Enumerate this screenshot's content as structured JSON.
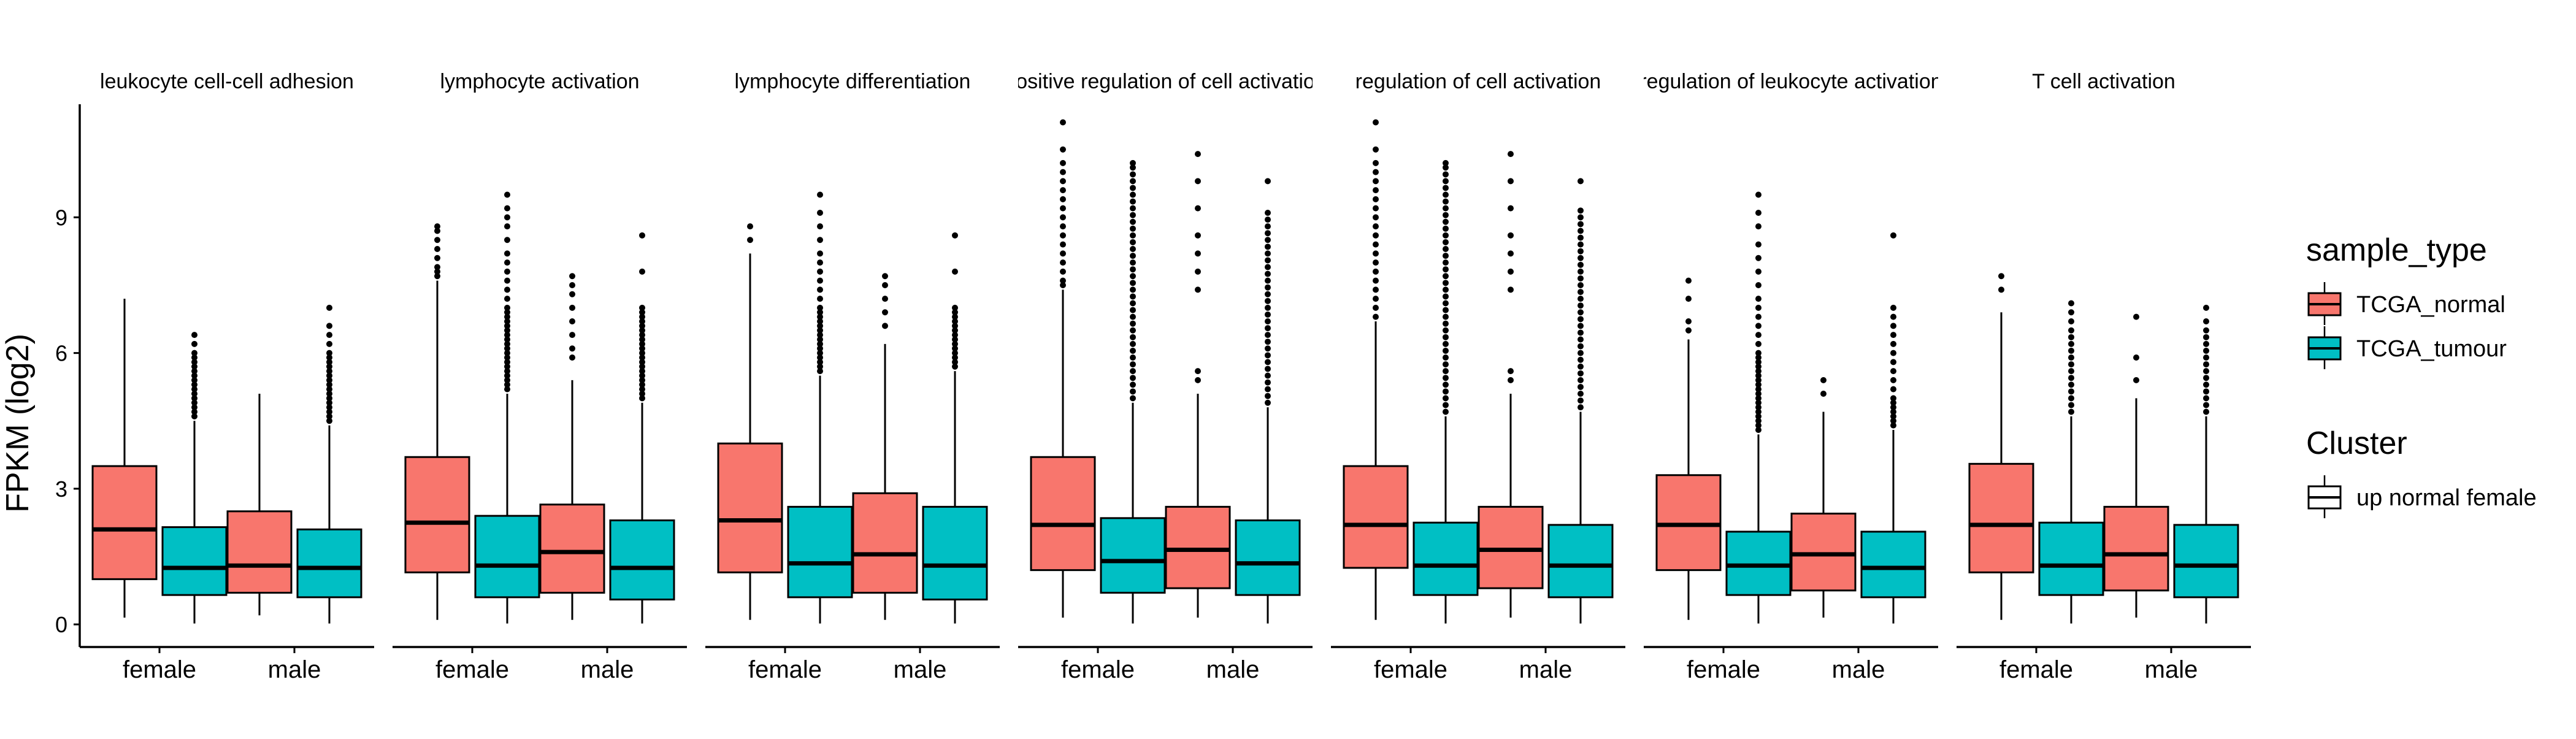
{
  "chart_data": {
    "type": "boxplot",
    "ylabel": "FPKM (log2)",
    "categories": [
      "female",
      "male"
    ],
    "yticks": [
      0,
      3,
      6,
      9
    ],
    "ylim": [
      -0.5,
      11.5
    ],
    "series_colors": {
      "TCGA_normal": "#F8766D",
      "TCGA_tumour": "#00BFC4"
    },
    "legend": {
      "sample_type_title": "sample_type",
      "sample_type_items": [
        {
          "label": "TCGA_normal",
          "color": "#F8766D"
        },
        {
          "label": "TCGA_tumour",
          "color": "#00BFC4"
        }
      ],
      "cluster_title": "Cluster",
      "cluster_items": [
        {
          "label": "up normal female",
          "color": "#ffffff"
        }
      ]
    },
    "facets": [
      {
        "title": "leukocyte cell-cell adhesion",
        "boxes": [
          {
            "group": "female",
            "series": "TCGA_normal",
            "min": 0.15,
            "q1": 1.0,
            "median": 2.1,
            "q3": 3.5,
            "max": 7.2,
            "outliers": []
          },
          {
            "group": "female",
            "series": "TCGA_tumour",
            "min": 0.02,
            "q1": 0.65,
            "median": 1.25,
            "q3": 2.15,
            "max": 4.5,
            "outliers": [
              4.6,
              4.7,
              4.8,
              4.9,
              5.0,
              5.1,
              5.2,
              5.3,
              5.4,
              5.5,
              5.6,
              5.7,
              5.8,
              5.9,
              6.0,
              6.2,
              6.4
            ]
          },
          {
            "group": "male",
            "series": "TCGA_normal",
            "min": 0.2,
            "q1": 0.7,
            "median": 1.3,
            "q3": 2.5,
            "max": 5.1,
            "outliers": []
          },
          {
            "group": "male",
            "series": "TCGA_tumour",
            "min": 0.02,
            "q1": 0.6,
            "median": 1.25,
            "q3": 2.1,
            "max": 4.4,
            "outliers": [
              4.5,
              4.6,
              4.7,
              4.8,
              4.9,
              5.0,
              5.1,
              5.2,
              5.3,
              5.4,
              5.5,
              5.6,
              5.7,
              5.8,
              5.9,
              6.0,
              6.2,
              6.4,
              6.6,
              7.0
            ]
          }
        ]
      },
      {
        "title": "lymphocyte activation",
        "boxes": [
          {
            "group": "female",
            "series": "TCGA_normal",
            "min": 0.1,
            "q1": 1.15,
            "median": 2.25,
            "q3": 3.7,
            "max": 7.6,
            "outliers": [
              7.7,
              7.8,
              7.9,
              8.1,
              8.3,
              8.5,
              8.7,
              8.8
            ]
          },
          {
            "group": "female",
            "series": "TCGA_tumour",
            "min": 0.02,
            "q1": 0.6,
            "median": 1.3,
            "q3": 2.4,
            "max": 5.1,
            "outliers": [
              5.2,
              5.3,
              5.4,
              5.5,
              5.6,
              5.7,
              5.8,
              5.9,
              6.0,
              6.1,
              6.2,
              6.3,
              6.4,
              6.5,
              6.6,
              6.7,
              6.8,
              6.9,
              7.0,
              7.2,
              7.4,
              7.6,
              7.8,
              8.0,
              8.2,
              8.5,
              8.8,
              9.0,
              9.2,
              9.5
            ]
          },
          {
            "group": "male",
            "series": "TCGA_normal",
            "min": 0.1,
            "q1": 0.7,
            "median": 1.6,
            "q3": 2.65,
            "max": 5.4,
            "outliers": [
              5.9,
              6.1,
              6.4,
              6.7,
              7.0,
              7.3,
              7.5,
              7.7
            ]
          },
          {
            "group": "male",
            "series": "TCGA_tumour",
            "min": 0.02,
            "q1": 0.55,
            "median": 1.25,
            "q3": 2.3,
            "max": 4.9,
            "outliers": [
              5.0,
              5.1,
              5.2,
              5.3,
              5.4,
              5.5,
              5.6,
              5.7,
              5.8,
              5.9,
              6.0,
              6.1,
              6.2,
              6.3,
              6.4,
              6.5,
              6.6,
              6.7,
              6.8,
              6.9,
              7.0,
              7.8,
              8.6
            ]
          }
        ]
      },
      {
        "title": "lymphocyte differentiation",
        "boxes": [
          {
            "group": "female",
            "series": "TCGA_normal",
            "min": 0.1,
            "q1": 1.15,
            "median": 2.3,
            "q3": 4.0,
            "max": 8.2,
            "outliers": [
              8.5,
              8.8
            ]
          },
          {
            "group": "female",
            "series": "TCGA_tumour",
            "min": 0.02,
            "q1": 0.6,
            "median": 1.35,
            "q3": 2.6,
            "max": 5.5,
            "outliers": [
              5.6,
              5.7,
              5.8,
              5.9,
              6.0,
              6.1,
              6.2,
              6.3,
              6.4,
              6.5,
              6.6,
              6.7,
              6.8,
              6.9,
              7.0,
              7.2,
              7.4,
              7.6,
              7.8,
              8.0,
              8.2,
              8.5,
              8.8,
              9.1,
              9.5
            ]
          },
          {
            "group": "male",
            "series": "TCGA_normal",
            "min": 0.1,
            "q1": 0.7,
            "median": 1.55,
            "q3": 2.9,
            "max": 6.2,
            "outliers": [
              6.6,
              6.9,
              7.2,
              7.5,
              7.7
            ]
          },
          {
            "group": "male",
            "series": "TCGA_tumour",
            "min": 0.02,
            "q1": 0.55,
            "median": 1.3,
            "q3": 2.6,
            "max": 5.6,
            "outliers": [
              5.7,
              5.8,
              5.9,
              6.0,
              6.1,
              6.2,
              6.3,
              6.4,
              6.5,
              6.6,
              6.7,
              6.8,
              6.9,
              7.0,
              7.8,
              8.6
            ]
          }
        ]
      },
      {
        "title": "positive regulation of cell activation",
        "boxes": [
          {
            "group": "female",
            "series": "TCGA_normal",
            "min": 0.15,
            "q1": 1.2,
            "median": 2.2,
            "q3": 3.7,
            "max": 7.4,
            "outliers": [
              7.5,
              7.6,
              7.8,
              8.0,
              8.2,
              8.4,
              8.6,
              8.8,
              9.0,
              9.2,
              9.4,
              9.6,
              9.8,
              10.0,
              10.2,
              10.5,
              11.1
            ]
          },
          {
            "group": "female",
            "series": "TCGA_tumour",
            "min": 0.02,
            "q1": 0.7,
            "median": 1.4,
            "q3": 2.35,
            "max": 4.9,
            "outliers": [
              5.0,
              5.15,
              5.3,
              5.45,
              5.6,
              5.75,
              5.9,
              6.05,
              6.2,
              6.35,
              6.5,
              6.65,
              6.8,
              6.95,
              7.1,
              7.25,
              7.4,
              7.55,
              7.7,
              7.85,
              8.0,
              8.15,
              8.3,
              8.45,
              8.6,
              8.75,
              8.9,
              9.05,
              9.2,
              9.35,
              9.5,
              9.65,
              9.8,
              9.95,
              10.1,
              10.2
            ]
          },
          {
            "group": "male",
            "series": "TCGA_normal",
            "min": 0.15,
            "q1": 0.8,
            "median": 1.65,
            "q3": 2.6,
            "max": 5.1,
            "outliers": [
              5.4,
              5.6,
              7.4,
              7.8,
              8.2,
              8.6,
              9.2,
              9.8,
              10.4
            ]
          },
          {
            "group": "male",
            "series": "TCGA_tumour",
            "min": 0.02,
            "q1": 0.65,
            "median": 1.35,
            "q3": 2.3,
            "max": 4.8,
            "outliers": [
              4.9,
              5.05,
              5.2,
              5.35,
              5.5,
              5.65,
              5.8,
              5.95,
              6.1,
              6.25,
              6.4,
              6.55,
              6.7,
              6.85,
              7.0,
              7.15,
              7.3,
              7.45,
              7.6,
              7.75,
              7.9,
              8.05,
              8.2,
              8.35,
              8.5,
              8.65,
              8.8,
              8.95,
              9.1,
              9.8
            ]
          }
        ]
      },
      {
        "title": "regulation of cell activation",
        "boxes": [
          {
            "group": "female",
            "series": "TCGA_normal",
            "min": 0.1,
            "q1": 1.25,
            "median": 2.2,
            "q3": 3.5,
            "max": 6.7,
            "outliers": [
              6.8,
              7.0,
              7.2,
              7.4,
              7.6,
              7.8,
              8.0,
              8.2,
              8.4,
              8.6,
              8.8,
              9.0,
              9.2,
              9.4,
              9.6,
              9.8,
              10.0,
              10.2,
              10.5,
              11.1
            ]
          },
          {
            "group": "female",
            "series": "TCGA_tumour",
            "min": 0.02,
            "q1": 0.65,
            "median": 1.3,
            "q3": 2.25,
            "max": 4.6,
            "outliers": [
              4.7,
              4.85,
              5.0,
              5.15,
              5.3,
              5.45,
              5.6,
              5.75,
              5.9,
              6.05,
              6.2,
              6.35,
              6.5,
              6.65,
              6.8,
              6.95,
              7.1,
              7.25,
              7.4,
              7.55,
              7.7,
              7.85,
              8.0,
              8.15,
              8.3,
              8.45,
              8.6,
              8.75,
              8.9,
              9.05,
              9.2,
              9.35,
              9.5,
              9.65,
              9.8,
              9.95,
              10.1,
              10.2
            ]
          },
          {
            "group": "male",
            "series": "TCGA_normal",
            "min": 0.15,
            "q1": 0.8,
            "median": 1.65,
            "q3": 2.6,
            "max": 5.1,
            "outliers": [
              5.4,
              5.6,
              7.4,
              7.8,
              8.2,
              8.6,
              9.2,
              9.8,
              10.4
            ]
          },
          {
            "group": "male",
            "series": "TCGA_tumour",
            "min": 0.02,
            "q1": 0.6,
            "median": 1.3,
            "q3": 2.2,
            "max": 4.7,
            "outliers": [
              4.8,
              4.95,
              5.1,
              5.25,
              5.4,
              5.55,
              5.7,
              5.85,
              6.0,
              6.15,
              6.3,
              6.45,
              6.6,
              6.75,
              6.9,
              7.05,
              7.2,
              7.35,
              7.5,
              7.65,
              7.8,
              7.95,
              8.1,
              8.25,
              8.4,
              8.55,
              8.7,
              8.85,
              9.0,
              9.15,
              9.8
            ]
          }
        ]
      },
      {
        "title": "regulation of leukocyte activation",
        "boxes": [
          {
            "group": "female",
            "series": "TCGA_normal",
            "min": 0.1,
            "q1": 1.2,
            "median": 2.2,
            "q3": 3.3,
            "max": 6.3,
            "outliers": [
              6.5,
              6.7,
              7.2,
              7.6
            ]
          },
          {
            "group": "female",
            "series": "TCGA_tumour",
            "min": 0.02,
            "q1": 0.65,
            "median": 1.3,
            "q3": 2.05,
            "max": 4.2,
            "outliers": [
              4.3,
              4.4,
              4.5,
              4.6,
              4.7,
              4.8,
              4.9,
              5.0,
              5.1,
              5.2,
              5.3,
              5.4,
              5.5,
              5.6,
              5.7,
              5.8,
              5.9,
              6.0,
              6.2,
              6.4,
              6.6,
              6.8,
              7.0,
              7.2,
              7.5,
              7.8,
              8.1,
              8.4,
              8.8,
              9.1,
              9.5
            ]
          },
          {
            "group": "male",
            "series": "TCGA_normal",
            "min": 0.15,
            "q1": 0.75,
            "median": 1.55,
            "q3": 2.45,
            "max": 4.7,
            "outliers": [
              5.1,
              5.4
            ]
          },
          {
            "group": "male",
            "series": "TCGA_tumour",
            "min": 0.02,
            "q1": 0.6,
            "median": 1.25,
            "q3": 2.05,
            "max": 4.3,
            "outliers": [
              4.4,
              4.5,
              4.6,
              4.7,
              4.8,
              4.9,
              5.0,
              5.2,
              5.4,
              5.6,
              5.8,
              6.0,
              6.2,
              6.4,
              6.6,
              6.8,
              7.0,
              8.6
            ]
          }
        ]
      },
      {
        "title": "T cell activation",
        "boxes": [
          {
            "group": "female",
            "series": "TCGA_normal",
            "min": 0.1,
            "q1": 1.15,
            "median": 2.2,
            "q3": 3.55,
            "max": 6.9,
            "outliers": [
              7.4,
              7.7
            ]
          },
          {
            "group": "female",
            "series": "TCGA_tumour",
            "min": 0.02,
            "q1": 0.65,
            "median": 1.3,
            "q3": 2.25,
            "max": 4.6,
            "outliers": [
              4.7,
              4.85,
              5.0,
              5.15,
              5.3,
              5.45,
              5.6,
              5.75,
              5.9,
              6.05,
              6.2,
              6.35,
              6.5,
              6.7,
              6.9,
              7.1
            ]
          },
          {
            "group": "male",
            "series": "TCGA_normal",
            "min": 0.15,
            "q1": 0.75,
            "median": 1.55,
            "q3": 2.6,
            "max": 5.0,
            "outliers": [
              5.4,
              5.9,
              6.8
            ]
          },
          {
            "group": "male",
            "series": "TCGA_tumour",
            "min": 0.02,
            "q1": 0.6,
            "median": 1.3,
            "q3": 2.2,
            "max": 4.6,
            "outliers": [
              4.7,
              4.85,
              5.0,
              5.15,
              5.3,
              5.45,
              5.6,
              5.75,
              5.9,
              6.05,
              6.2,
              6.35,
              6.5,
              6.7,
              7.0
            ]
          }
        ]
      }
    ]
  }
}
